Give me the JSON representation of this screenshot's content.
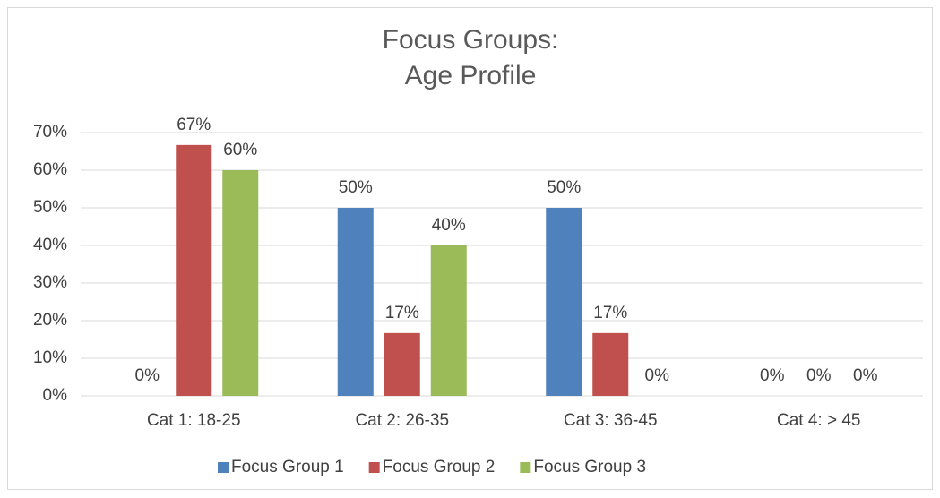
{
  "chart_data": {
    "type": "bar",
    "title": [
      "Focus Groups:",
      "Age Profile"
    ],
    "categories": [
      "Cat 1: 18-25",
      "Cat 2: 26-35",
      "Cat 3: 36-45",
      "Cat 4: > 45"
    ],
    "series": [
      {
        "name": "Focus Group 1",
        "color": "#4f81bd",
        "values": [
          0,
          50,
          50,
          0
        ],
        "value_labels": [
          "0%",
          "50%",
          "50%",
          "0%"
        ]
      },
      {
        "name": "Focus Group 2",
        "color": "#c0504d",
        "values": [
          66.7,
          16.7,
          16.7,
          0
        ],
        "value_labels": [
          "67%",
          "17%",
          "17%",
          "0%"
        ]
      },
      {
        "name": "Focus Group 3",
        "color": "#9bbb59",
        "values": [
          60,
          40,
          0,
          0
        ],
        "value_labels": [
          "60%",
          "40%",
          "0%",
          "0%"
        ]
      }
    ],
    "ylim": [
      0,
      70
    ],
    "yticks": [
      {
        "value": 0,
        "label": "0%"
      },
      {
        "value": 10,
        "label": "10%"
      },
      {
        "value": 20,
        "label": "20%"
      },
      {
        "value": 30,
        "label": "30%"
      },
      {
        "value": 40,
        "label": "40%"
      },
      {
        "value": 50,
        "label": "50%"
      },
      {
        "value": 60,
        "label": "60%"
      },
      {
        "value": 70,
        "label": "70%"
      }
    ],
    "grid": true,
    "legend": "bottom"
  }
}
